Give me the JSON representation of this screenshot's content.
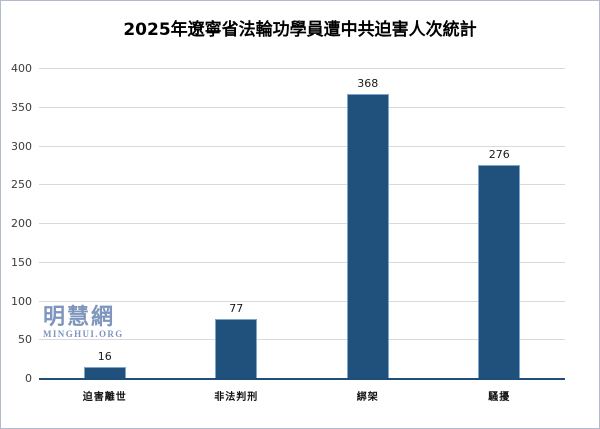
{
  "watermark": {
    "cn": "明慧網",
    "en": "MINGHUI.ORG"
  },
  "chart_data": {
    "type": "bar",
    "title": "2025年遼寧省法輪功學員遭中共迫害人次統計",
    "categories": [
      "迫害離世",
      "非法判刑",
      "綁架",
      "騷擾"
    ],
    "values": [
      16,
      77,
      368,
      276
    ],
    "xlabel": "",
    "ylabel": "",
    "ylim": [
      0,
      400
    ],
    "yticks": [
      0,
      50,
      100,
      150,
      200,
      250,
      300,
      350,
      400
    ],
    "grid": true,
    "legend_position": "none",
    "colors": {
      "bar_fill": "#20507c",
      "bar_edge": "#7fa6c8",
      "gridline": "#d9d9d9",
      "axis_line": "#1f4e79",
      "watermark": "#7e95bd"
    }
  }
}
